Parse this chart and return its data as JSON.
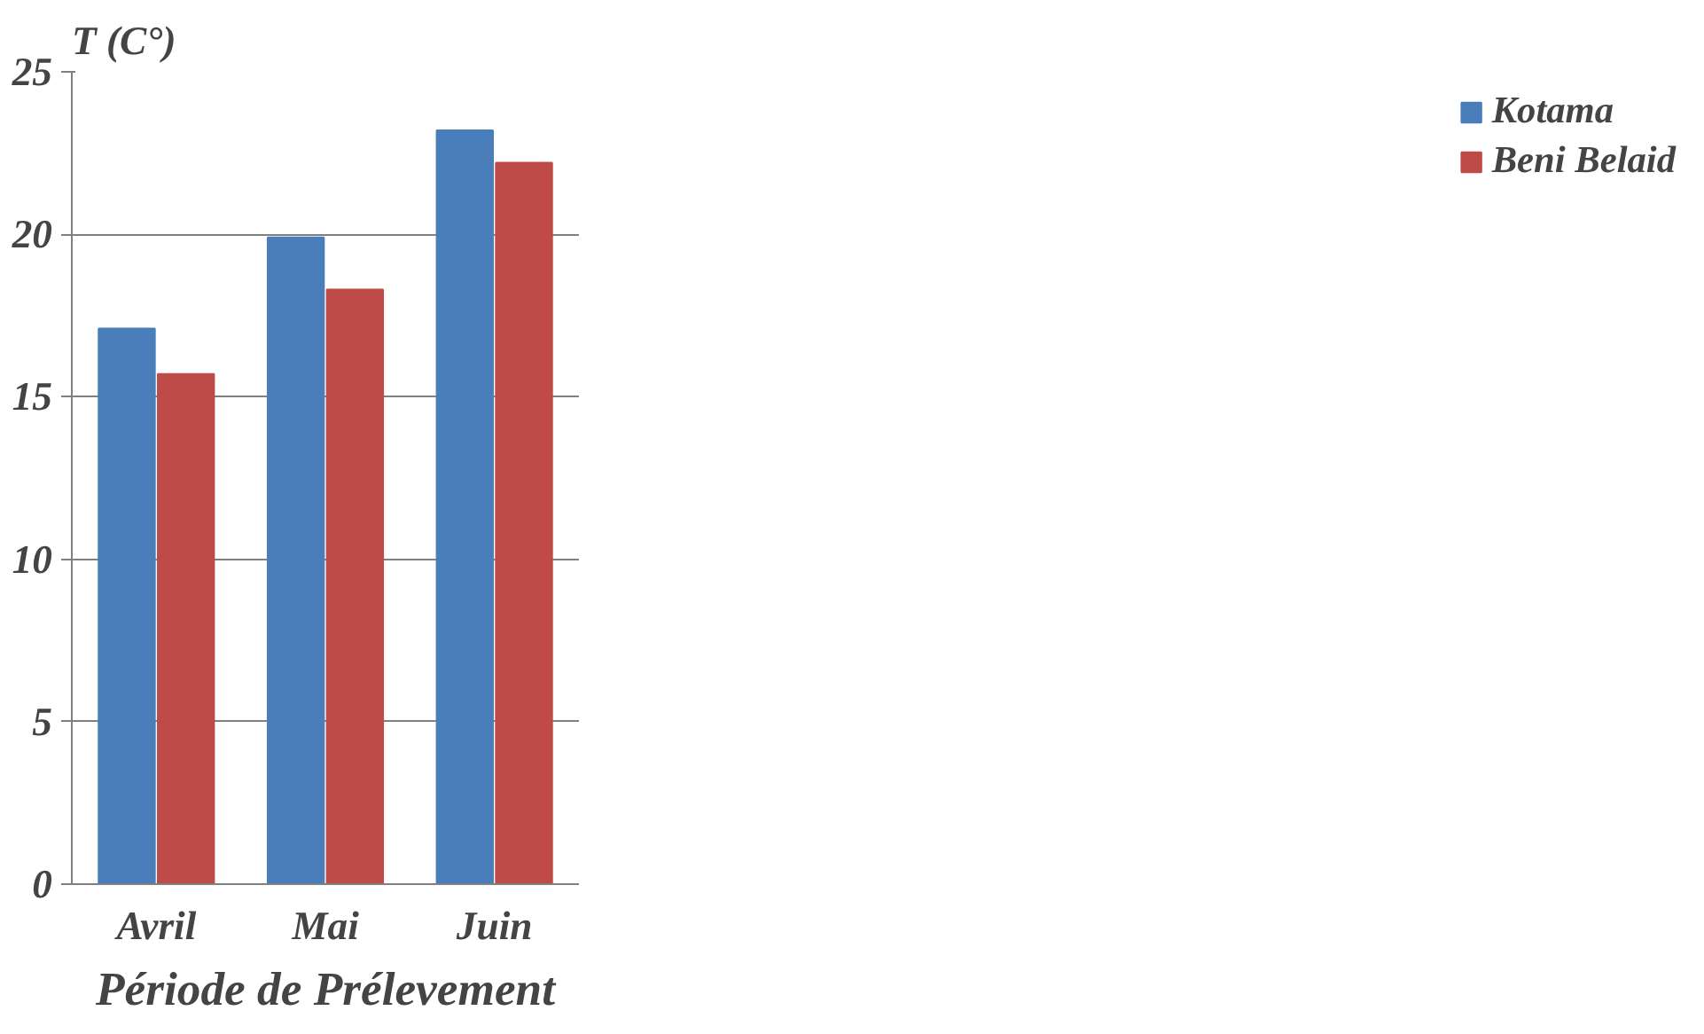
{
  "chart_data": {
    "type": "bar",
    "ylabel": "T (C°)",
    "xlabel": "Période de Prélevement",
    "categories": [
      "Avril",
      "Mai",
      "Juin"
    ],
    "series": [
      {
        "name": "Kotama",
        "color": "#4a7ebb",
        "values": [
          17.1,
          19.9,
          23.2
        ]
      },
      {
        "name": "Beni Belaid",
        "color": "#be4b48",
        "values": [
          15.7,
          18.3,
          22.2
        ]
      }
    ],
    "ylim": [
      0,
      25
    ],
    "yticks": [
      0,
      5,
      10,
      15,
      20,
      25
    ],
    "grid": "y",
    "legend": "right"
  }
}
